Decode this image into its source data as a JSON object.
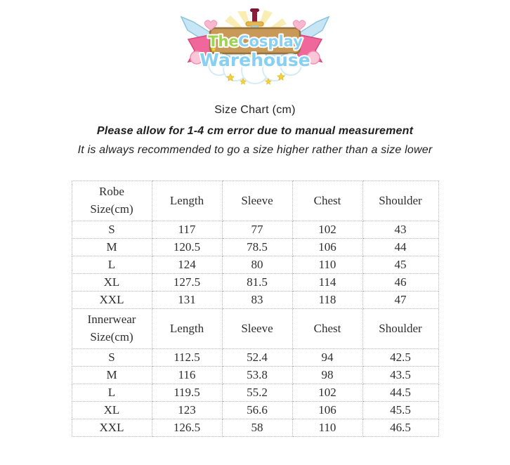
{
  "logo": {
    "alt": "The Cosplay Warehouse",
    "text_the": "The",
    "text_cosplay": "Cosplay",
    "text_warehouse": "Warehouse",
    "colors": {
      "blade_blue": "#bfe4f5",
      "blade_edge": "#8fc3de",
      "handle_crimson": "#8e1d3d",
      "gold": "#e8b64e",
      "board_brown": "#c99a57",
      "board_edge": "#97713b",
      "ribbon_pink": "#f0679b",
      "ribbon_edge": "#d5487e",
      "star_yellow": "#f6d23e",
      "heart_pink": "#f7b8cf",
      "text_green": "#9ed34f",
      "text_blue": "#87d0f1",
      "ray_yellow": "#f9eaa6"
    }
  },
  "header": {
    "title": "Size Chart (cm)",
    "note1": "Please allow for 1-4 cm error due to manual measurement",
    "note2": "It is always recommended to go a size higher rather than a size lower"
  },
  "table": {
    "sections": [
      {
        "header": {
          "col0_line1": "Robe",
          "col0_line2": "Size(cm)",
          "cols": [
            "Length",
            "Sleeve",
            "Chest",
            "Shoulder"
          ]
        },
        "rows": [
          {
            "size": "S",
            "values": [
              "117",
              "77",
              "102",
              "43"
            ]
          },
          {
            "size": "M",
            "values": [
              "120.5",
              "78.5",
              "106",
              "44"
            ]
          },
          {
            "size": "L",
            "values": [
              "124",
              "80",
              "110",
              "45"
            ]
          },
          {
            "size": "XL",
            "values": [
              "127.5",
              "81.5",
              "114",
              "46"
            ]
          },
          {
            "size": "XXL",
            "values": [
              "131",
              "83",
              "118",
              "47"
            ]
          }
        ]
      },
      {
        "header": {
          "col0_line1": "Innerwear",
          "col0_line2": "Size(cm)",
          "cols": [
            "Length",
            "Sleeve",
            "Chest",
            "Shoulder"
          ]
        },
        "rows": [
          {
            "size": "S",
            "values": [
              "112.5",
              "52.4",
              "94",
              "42.5"
            ]
          },
          {
            "size": "M",
            "values": [
              "116",
              "53.8",
              "98",
              "43.5"
            ]
          },
          {
            "size": "L",
            "values": [
              "119.5",
              "55.2",
              "102",
              "44.5"
            ]
          },
          {
            "size": "XL",
            "values": [
              "123",
              "56.6",
              "106",
              "45.5"
            ]
          },
          {
            "size": "XXL",
            "values": [
              "126.5",
              "58",
              "110",
              "46.5"
            ]
          }
        ]
      }
    ]
  }
}
